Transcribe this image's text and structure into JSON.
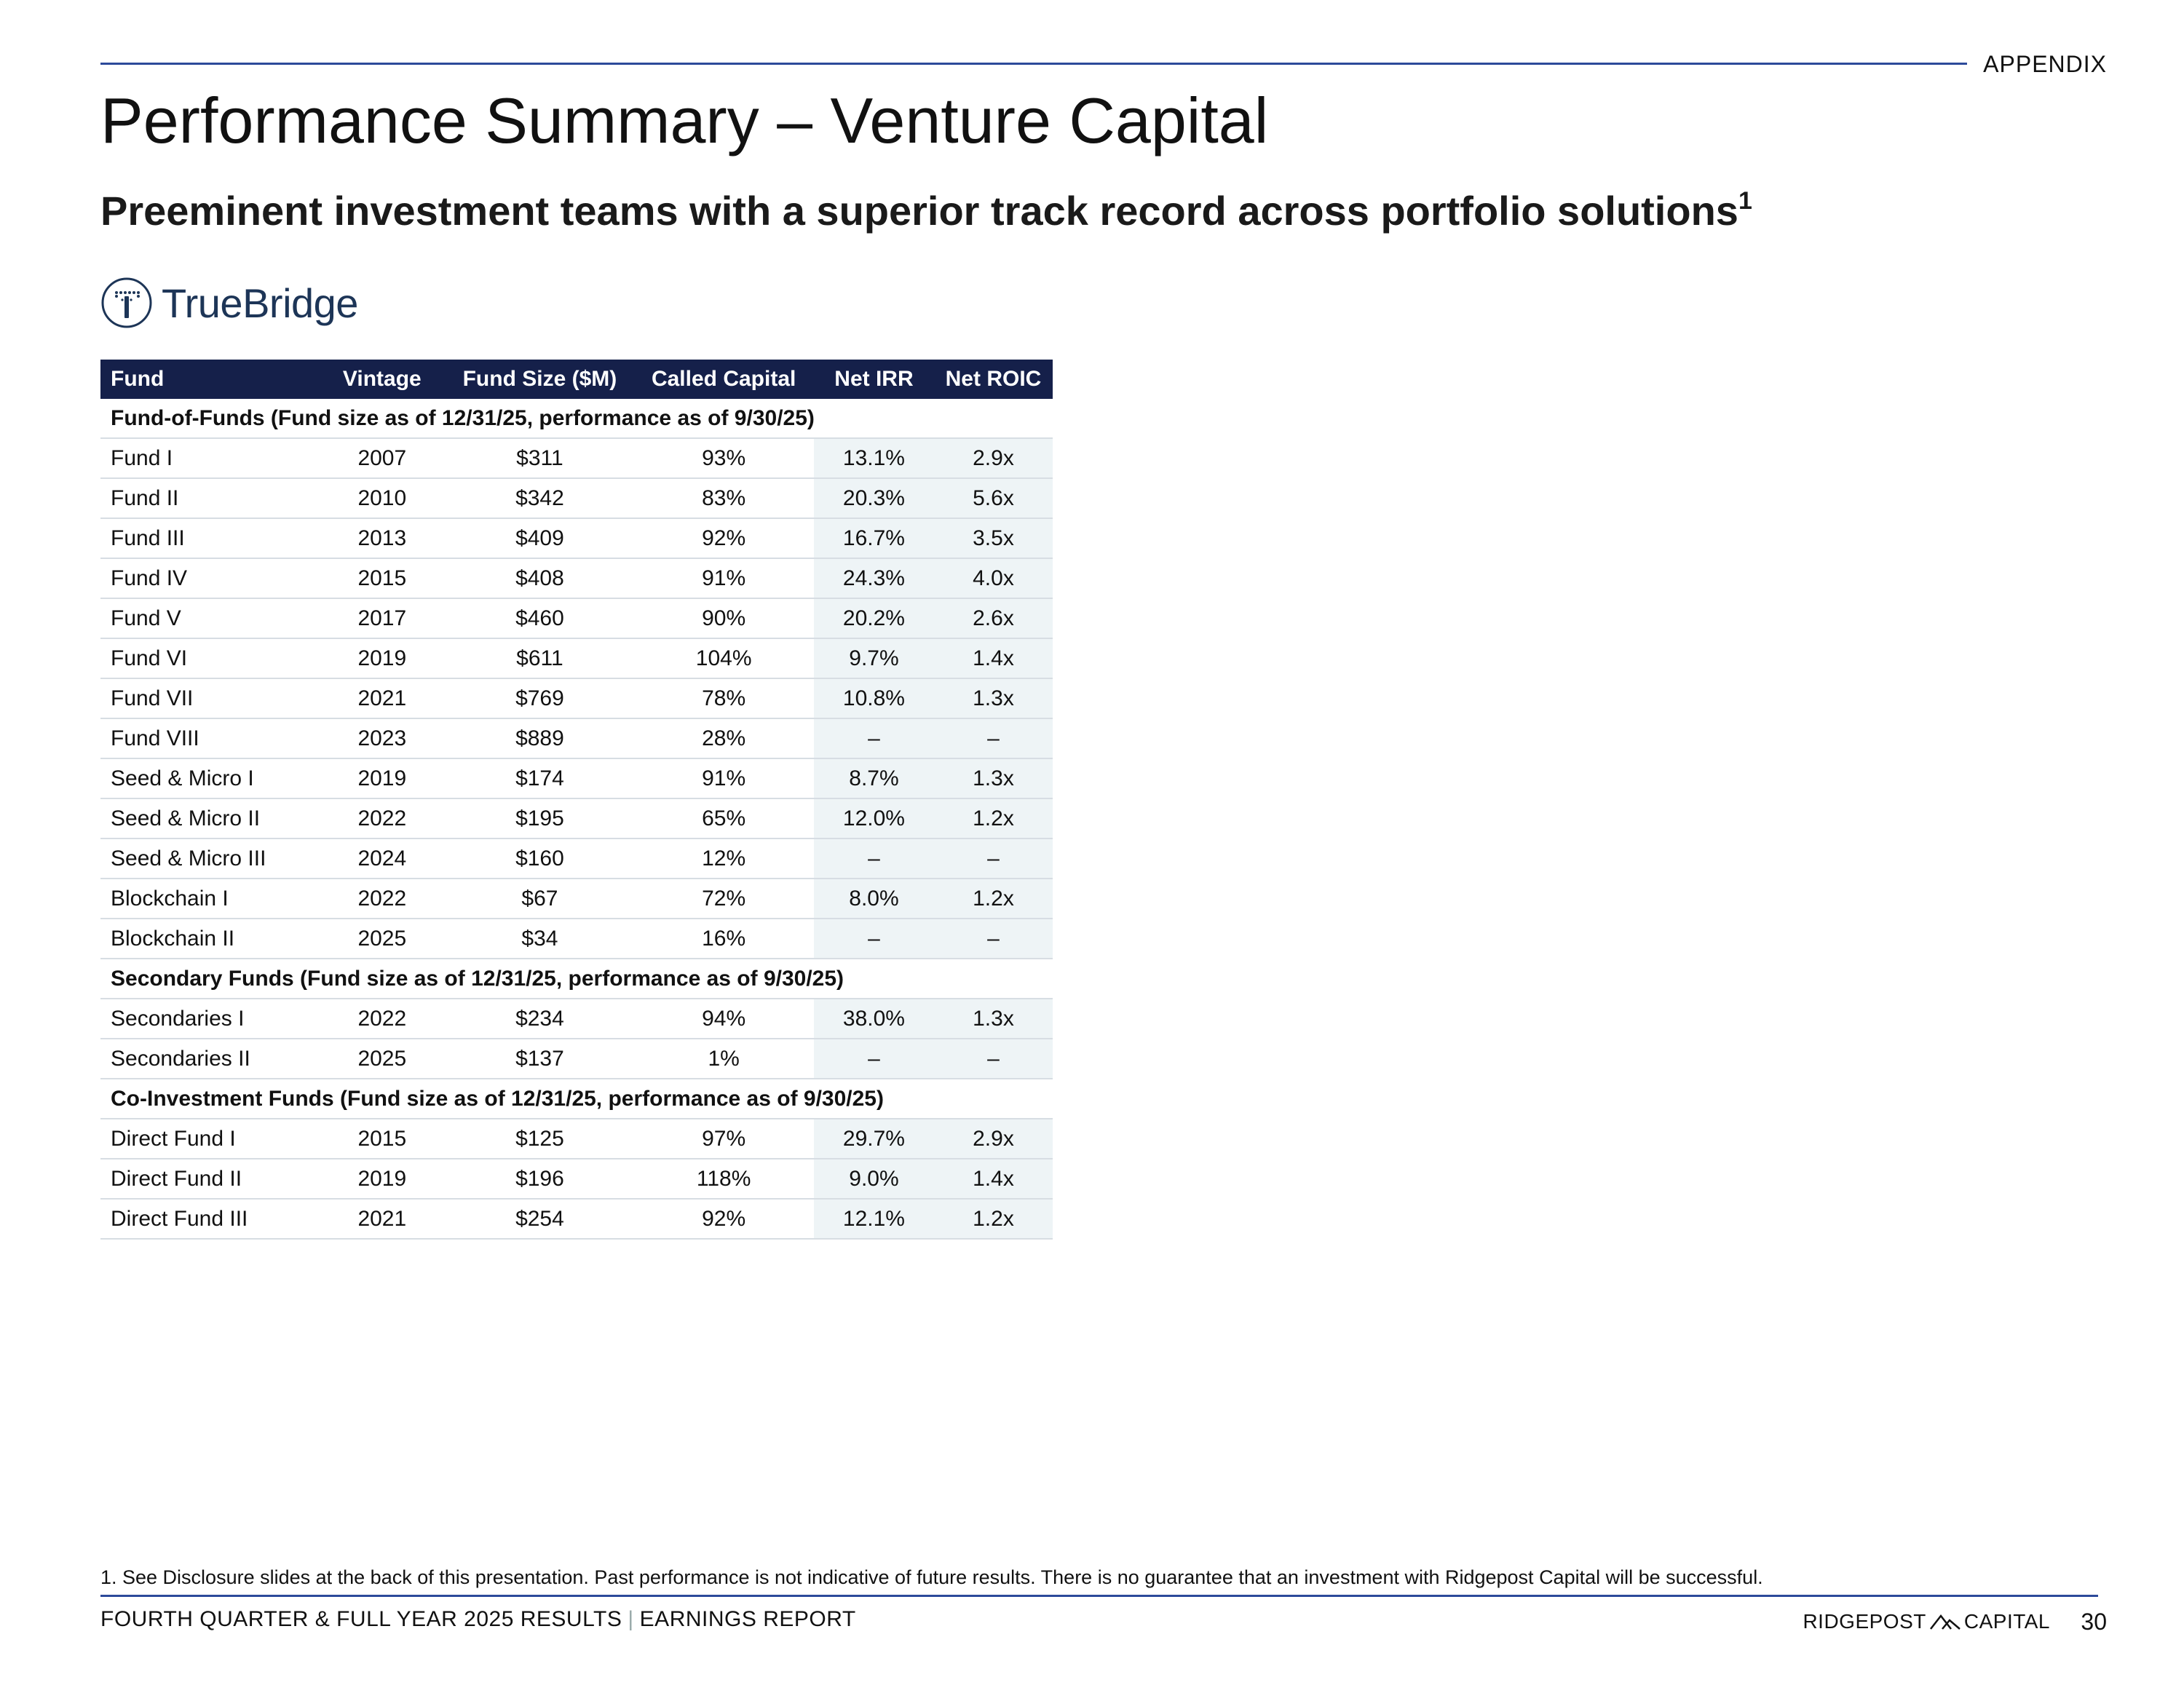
{
  "header": {
    "section_label": "APPENDIX",
    "title": "Performance Summary – Venture Capital",
    "subtitle": "Preeminent investment teams with a superior track record across portfolio solutions",
    "subtitle_footnote_ref": "1"
  },
  "logo": {
    "icon": "truebridge-logo-icon",
    "text": "TrueBridge"
  },
  "table": {
    "headers": [
      "Fund",
      "Vintage",
      "Fund Size ($M)",
      "Called Capital",
      "Net IRR",
      "Net ROIC"
    ],
    "sections": [
      {
        "title": "Fund-of-Funds (Fund size as of 12/31/25, performance as of 9/30/25)",
        "rows": [
          [
            "Fund I",
            "2007",
            "$311",
            "93%",
            "13.1%",
            "2.9x"
          ],
          [
            "Fund II",
            "2010",
            "$342",
            "83%",
            "20.3%",
            "5.6x"
          ],
          [
            "Fund III",
            "2013",
            "$409",
            "92%",
            "16.7%",
            "3.5x"
          ],
          [
            "Fund IV",
            "2015",
            "$408",
            "91%",
            "24.3%",
            "4.0x"
          ],
          [
            "Fund V",
            "2017",
            "$460",
            "90%",
            "20.2%",
            "2.6x"
          ],
          [
            "Fund VI",
            "2019",
            "$611",
            "104%",
            "9.7%",
            "1.4x"
          ],
          [
            "Fund VII",
            "2021",
            "$769",
            "78%",
            "10.8%",
            "1.3x"
          ],
          [
            "Fund VIII",
            "2023",
            "$889",
            "28%",
            "–",
            "–"
          ],
          [
            "Seed & Micro I",
            "2019",
            "$174",
            "91%",
            "8.7%",
            "1.3x"
          ],
          [
            "Seed & Micro II",
            "2022",
            "$195",
            "65%",
            "12.0%",
            "1.2x"
          ],
          [
            "Seed & Micro III",
            "2024",
            "$160",
            "12%",
            "–",
            "–"
          ],
          [
            "Blockchain I",
            "2022",
            "$67",
            "72%",
            "8.0%",
            "1.2x"
          ],
          [
            "Blockchain II",
            "2025",
            "$34",
            "16%",
            "–",
            "–"
          ]
        ]
      },
      {
        "title": "Secondary Funds (Fund size as of 12/31/25, performance as of 9/30/25)",
        "rows": [
          [
            "Secondaries I",
            "2022",
            "$234",
            "94%",
            "38.0%",
            "1.3x"
          ],
          [
            "Secondaries II",
            "2025",
            "$137",
            "1%",
            "–",
            "–"
          ]
        ]
      },
      {
        "title": "Co-Investment Funds (Fund size as of 12/31/25, performance as of 9/30/25)",
        "rows": [
          [
            "Direct Fund I",
            "2015",
            "$125",
            "97%",
            "29.7%",
            "2.9x"
          ],
          [
            "Direct Fund II",
            "2019",
            "$196",
            "118%",
            "9.0%",
            "1.4x"
          ],
          [
            "Direct Fund III",
            "2021",
            "$254",
            "92%",
            "12.1%",
            "1.2x"
          ]
        ]
      }
    ]
  },
  "footnote": "1.  See Disclosure slides at the back of this presentation. Past performance is not indicative of future results. There is no guarantee that an investment with Ridgepost Capital will be successful.",
  "footer": {
    "report_name": "FOURTH QUARTER & FULL YEAR 2025 RESULTS",
    "separator": "|",
    "report_type": "EARNINGS REPORT",
    "brand_left": "RIDGEPOST",
    "brand_right": "CAPITAL",
    "page_number": "30"
  },
  "colors": {
    "rule_blue": "#2c4a9a",
    "header_navy": "#15204a",
    "shade": "#eef4f6"
  }
}
